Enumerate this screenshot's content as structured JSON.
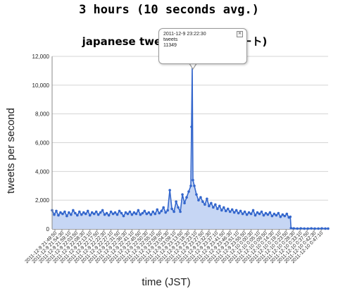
{
  "page": {
    "heading": "3 hours (10 seconds avg.)"
  },
  "chart_data": {
    "type": "area",
    "title": "japanese tweets (日本のツイート)",
    "xlabel": "time (JST)",
    "ylabel": "tweets per second",
    "ylim": [
      0,
      12000
    ],
    "yticks": [
      "0",
      "2,000",
      "4,000",
      "6,000",
      "8,000",
      "10,000",
      "12,000"
    ],
    "xticks": [
      "2011-12-9 21:49:50",
      "2011-12-9 21:54:30",
      "2011-12-9 21:59:10",
      "2011-12-9 22:03:50",
      "2011-12-9 22:08:30",
      "2011-12-9 22:13:10",
      "2011-12-9 22:17:50",
      "2011-12-9 22:22:30",
      "2011-12-9 22:27:10",
      "2011-12-9 22:31:50",
      "2011-12-9 22:36:30",
      "2011-12-9 22:41:10",
      "2011-12-9 22:45:50",
      "2011-12-9 22:50:30",
      "2011-12-9 22:55:10",
      "2011-12-9 22:59:50",
      "2011-12-9 23:04:30",
      "2011-12-9 23:09:10",
      "2011-12-9 23:13:50",
      "2011-12-9 23:18:30",
      "2011-12-9 23:23:10",
      "2011-12-9 23:27:50",
      "2011-12-9 23:32:30",
      "2011-12-9 23:37:10",
      "2011-12-9 23:41:50",
      "2011-12-9 23:46:30",
      "2011-12-9 23:51:10",
      "2011-12-9 23:55:50",
      "2011-12-10 0:00:30",
      "2011-12-10 0:05:10",
      "2011-12-10 0:09:50",
      "2011-12-10 0:14:30",
      "2011-12-10 0:19:10",
      "2011-12-10 0:23:50",
      "2011-12-10 0:28:30",
      "2011-12-10 0:33:10",
      "2011-12-10 0:37:50",
      "2011-12-10 0:42:30",
      "2011-12-10 0:47:10"
    ],
    "series": [
      {
        "name": "tweets",
        "color": "#3366cc",
        "fill": "#c6d6f4",
        "points": [
          [
            0,
            1300
          ],
          [
            3,
            1000
          ],
          [
            6,
            1250
          ],
          [
            9,
            950
          ],
          [
            12,
            1150
          ],
          [
            15,
            1050
          ],
          [
            18,
            1200
          ],
          [
            21,
            900
          ],
          [
            24,
            1150
          ],
          [
            27,
            1000
          ],
          [
            30,
            1300
          ],
          [
            33,
            1100
          ],
          [
            36,
            950
          ],
          [
            39,
            1200
          ],
          [
            42,
            1000
          ],
          [
            45,
            1150
          ],
          [
            48,
            1050
          ],
          [
            51,
            1250
          ],
          [
            54,
            950
          ],
          [
            57,
            1150
          ],
          [
            60,
            1050
          ],
          [
            63,
            1200
          ],
          [
            66,
            1000
          ],
          [
            69,
            1150
          ],
          [
            72,
            1300
          ],
          [
            75,
            1000
          ],
          [
            78,
            1100
          ],
          [
            81,
            950
          ],
          [
            84,
            1200
          ],
          [
            87,
            1050
          ],
          [
            90,
            1150
          ],
          [
            93,
            1000
          ],
          [
            96,
            1250
          ],
          [
            99,
            1100
          ],
          [
            102,
            900
          ],
          [
            105,
            1150
          ],
          [
            108,
            1050
          ],
          [
            111,
            1200
          ],
          [
            114,
            1000
          ],
          [
            117,
            1150
          ],
          [
            120,
            1050
          ],
          [
            123,
            1300
          ],
          [
            126,
            1000
          ],
          [
            129,
            1100
          ],
          [
            132,
            1250
          ],
          [
            135,
            1050
          ],
          [
            138,
            1150
          ],
          [
            141,
            1000
          ],
          [
            144,
            1200
          ],
          [
            147,
            1050
          ],
          [
            150,
            1350
          ],
          [
            153,
            1100
          ],
          [
            156,
            1250
          ],
          [
            159,
            1500
          ],
          [
            162,
            1150
          ],
          [
            165,
            1300
          ],
          [
            168,
            2700
          ],
          [
            171,
            1400
          ],
          [
            174,
            1200
          ],
          [
            177,
            1900
          ],
          [
            180,
            1500
          ],
          [
            183,
            1200
          ],
          [
            186,
            2400
          ],
          [
            189,
            1800
          ],
          [
            192,
            2200
          ],
          [
            195,
            2600
          ],
          [
            198,
            3000
          ],
          [
            199,
            7100
          ],
          [
            200,
            11349
          ],
          [
            201,
            3400
          ],
          [
            203,
            3000
          ],
          [
            206,
            2400
          ],
          [
            209,
            2000
          ],
          [
            212,
            2200
          ],
          [
            215,
            1900
          ],
          [
            218,
            1700
          ],
          [
            221,
            2100
          ],
          [
            224,
            1600
          ],
          [
            227,
            1800
          ],
          [
            230,
            1500
          ],
          [
            233,
            1700
          ],
          [
            236,
            1400
          ],
          [
            239,
            1600
          ],
          [
            242,
            1300
          ],
          [
            245,
            1500
          ],
          [
            248,
            1250
          ],
          [
            251,
            1400
          ],
          [
            254,
            1200
          ],
          [
            257,
            1350
          ],
          [
            260,
            1150
          ],
          [
            263,
            1300
          ],
          [
            266,
            1100
          ],
          [
            269,
            1250
          ],
          [
            272,
            1050
          ],
          [
            275,
            1200
          ],
          [
            278,
            1000
          ],
          [
            281,
            1150
          ],
          [
            284,
            1050
          ],
          [
            287,
            1300
          ],
          [
            290,
            950
          ],
          [
            293,
            1150
          ],
          [
            296,
            1050
          ],
          [
            299,
            1200
          ],
          [
            302,
            950
          ],
          [
            305,
            1100
          ],
          [
            308,
            1000
          ],
          [
            311,
            1150
          ],
          [
            314,
            900
          ],
          [
            317,
            1050
          ],
          [
            320,
            950
          ],
          [
            323,
            1100
          ],
          [
            326,
            850
          ],
          [
            329,
            1000
          ],
          [
            332,
            900
          ],
          [
            335,
            1050
          ],
          [
            338,
            800
          ],
          [
            340,
            850
          ],
          [
            341,
            60
          ],
          [
            345,
            40
          ],
          [
            350,
            30
          ],
          [
            355,
            40
          ],
          [
            360,
            30
          ],
          [
            365,
            30
          ],
          [
            370,
            40
          ],
          [
            375,
            30
          ],
          [
            380,
            30
          ],
          [
            385,
            40
          ],
          [
            390,
            30
          ],
          [
            394,
            30
          ]
        ]
      }
    ],
    "xcount": 395,
    "tooltip": {
      "time": "2011-12-9 23:22:30",
      "series": "tweets",
      "value": "11349"
    }
  }
}
